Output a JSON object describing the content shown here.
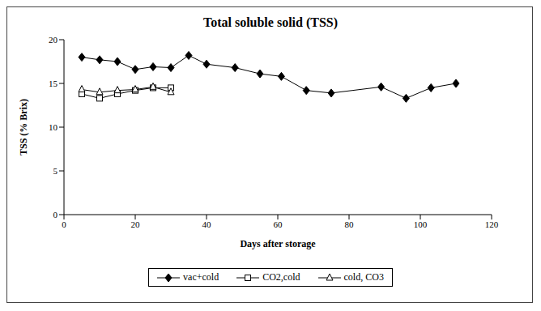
{
  "chart_data": {
    "type": "line",
    "title": "Total soluble solid (TSS)",
    "x_label": "Days after storage",
    "y_label": "TSS (% Brix)",
    "xlim": [
      0,
      120
    ],
    "xticks": [
      0,
      20,
      40,
      60,
      80,
      100,
      120
    ],
    "ylim": [
      0,
      20
    ],
    "yticks": [
      0,
      5,
      10,
      15,
      20
    ],
    "grid": false,
    "legend": "bottom",
    "series": [
      {
        "name": "vac+cold",
        "color": "#000000",
        "marker": "diamond",
        "x": [
          5,
          10,
          15,
          20,
          25,
          30,
          35,
          40,
          48,
          55,
          61,
          68,
          75,
          89,
          96,
          103,
          110
        ],
        "values": [
          18.0,
          17.7,
          17.5,
          16.6,
          16.9,
          16.8,
          18.2,
          17.2,
          16.8,
          16.1,
          15.8,
          14.2,
          13.9,
          14.6,
          13.3,
          14.5,
          15.0
        ]
      },
      {
        "name": "CO2,cold",
        "color": "#000000",
        "marker": "square",
        "x": [
          5,
          10,
          15,
          20,
          25,
          30
        ],
        "values": [
          13.8,
          13.3,
          13.8,
          14.2,
          14.5,
          14.5
        ]
      },
      {
        "name": "cold, CO3",
        "color": "#000000",
        "marker": "triangle",
        "x": [
          5,
          10,
          15,
          20,
          25,
          30
        ],
        "values": [
          14.3,
          14.0,
          14.2,
          14.3,
          14.6,
          14.0
        ]
      }
    ]
  }
}
